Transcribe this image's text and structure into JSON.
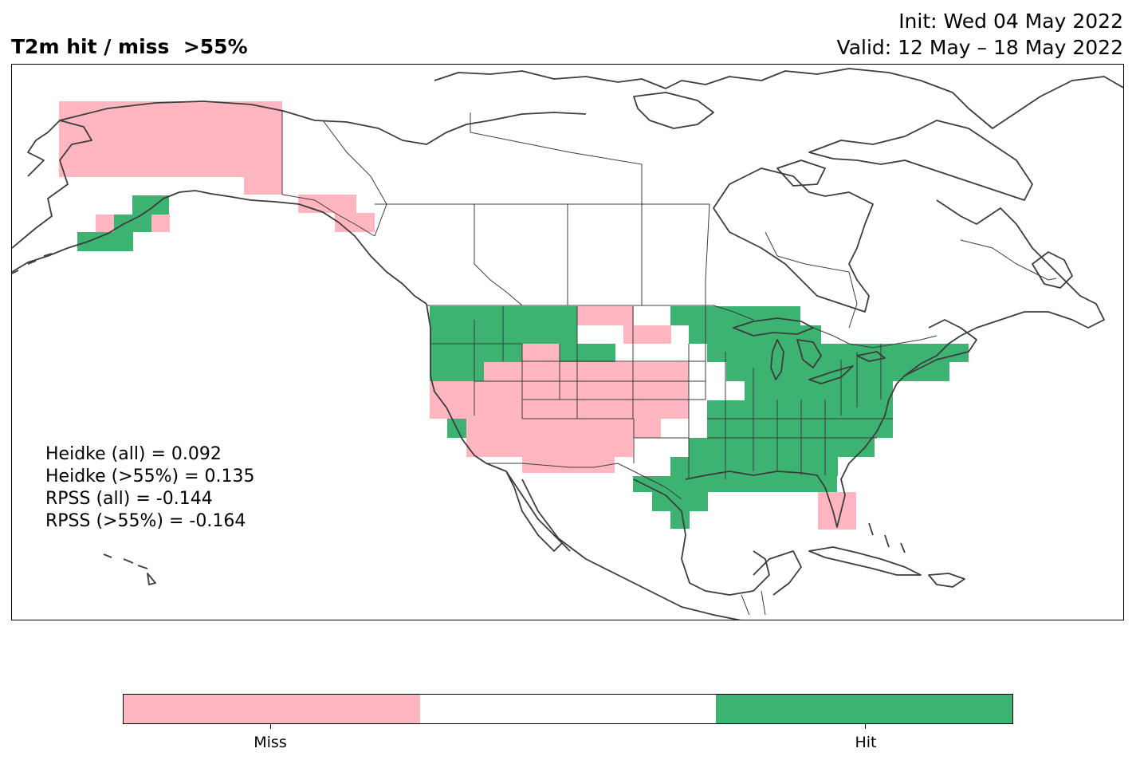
{
  "title": {
    "left": "T2m hit / miss  >55%",
    "init": "Init: Wed 04 May 2022",
    "valid": "Valid: 12 May – 18 May 2022"
  },
  "stats": [
    "Heidke (all) = 0.092",
    "Heidke (>55%) = 0.135",
    "RPSS (all) = -0.144",
    "RPSS (>55%) = -0.164"
  ],
  "colorbar": {
    "colors": [
      "#ffb6c1",
      "#ffffff",
      "#3cb371"
    ],
    "labels": [
      "Miss",
      "Hit"
    ]
  },
  "legend_colors": {
    "miss": "#ffb6c1",
    "hit": "#3cb371",
    "coastline": "#3c3c3c"
  }
}
